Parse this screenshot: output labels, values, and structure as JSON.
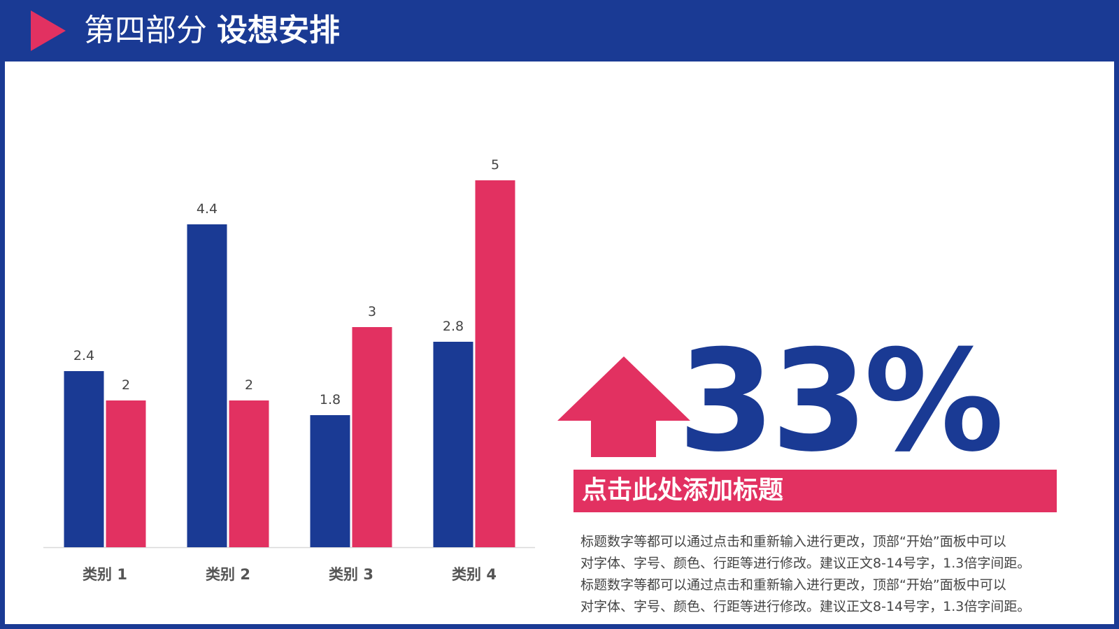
{
  "header": {
    "part_label": "第四部分",
    "topic_label": "设想安排"
  },
  "colors": {
    "primary_blue": "#1a3a94",
    "accent_pink": "#e23161",
    "background": "#ffffff"
  },
  "chart_data": {
    "type": "bar",
    "categories": [
      "类别 1",
      "类别 2",
      "类别 3",
      "类别 4"
    ],
    "series": [
      {
        "values": [
          2.4,
          4.4,
          1.8,
          2.8
        ],
        "color": "#1a3a94"
      },
      {
        "values": [
          2,
          2,
          3,
          5
        ],
        "color": "#e23161"
      }
    ],
    "ylim": [
      0,
      5
    ],
    "grid": false,
    "legend": "none"
  },
  "highlight": {
    "icon": "up-arrow-icon",
    "value": "33%"
  },
  "headline": "点击此处添加标题",
  "body_lines": [
    "标题数字等都可以通过点击和重新输入进行更改，顶部“开始”面板中可以",
    "对字体、字号、颜色、行距等进行修改。建议正文8-14号字，1.3倍字间距。",
    "标题数字等都可以通过点击和重新输入进行更改，顶部“开始”面板中可以",
    "对字体、字号、颜色、行距等进行修改。建议正文8-14号字，1.3倍字间距。"
  ]
}
